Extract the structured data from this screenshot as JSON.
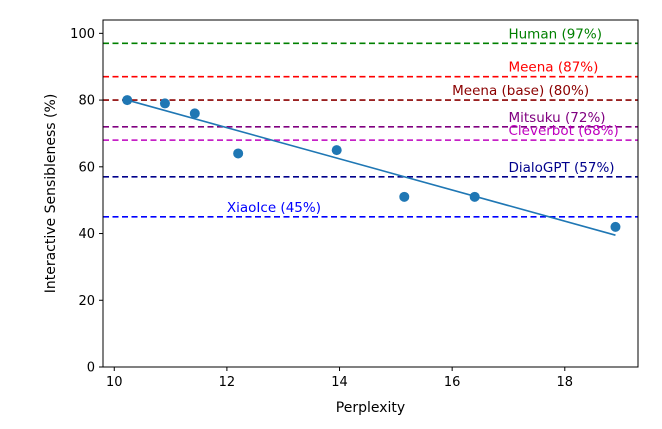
{
  "chart_data": {
    "type": "scatter",
    "title": "",
    "xlabel": "Perplexity",
    "ylabel": "Interactive Sensibleness (%)",
    "xlim": [
      9.8,
      19.3
    ],
    "ylim": [
      0,
      104
    ],
    "xticks": [
      10,
      12,
      14,
      16,
      18
    ],
    "yticks": [
      0,
      20,
      40,
      60,
      80,
      100
    ],
    "grid": false,
    "points": [
      {
        "x": 10.23,
        "y": 80
      },
      {
        "x": 10.9,
        "y": 79
      },
      {
        "x": 11.43,
        "y": 76
      },
      {
        "x": 12.2,
        "y": 64
      },
      {
        "x": 13.95,
        "y": 65
      },
      {
        "x": 15.15,
        "y": 51
      },
      {
        "x": 16.4,
        "y": 51
      },
      {
        "x": 18.9,
        "y": 42
      }
    ],
    "point_color": "#1f77b4",
    "trend_line": {
      "x": [
        10.23,
        18.9
      ],
      "y": [
        80,
        39.5
      ],
      "color": "#1f77b4"
    },
    "reference_lines": [
      {
        "label": "Human (97%)",
        "y": 97,
        "color": "#008000",
        "label_x": 17.0
      },
      {
        "label": "Meena (87%)",
        "y": 87,
        "color": "#ff0000",
        "label_x": 17.0
      },
      {
        "label": "Meena (base) (80%)",
        "y": 80,
        "color": "#8b0000",
        "label_x": 16.0
      },
      {
        "label": "Mitsuku (72%)",
        "y": 72,
        "color": "#800080",
        "label_x": 17.0
      },
      {
        "label": "Cleverbot (68%)",
        "y": 68,
        "color": "#bf00bf",
        "label_x": 17.0
      },
      {
        "label": "DialoGPT (57%)",
        "y": 57,
        "color": "#00008b",
        "label_x": 17.0
      },
      {
        "label": "XiaoIce (45%)",
        "y": 45,
        "color": "#0000ff",
        "label_x": 12.0
      }
    ]
  }
}
